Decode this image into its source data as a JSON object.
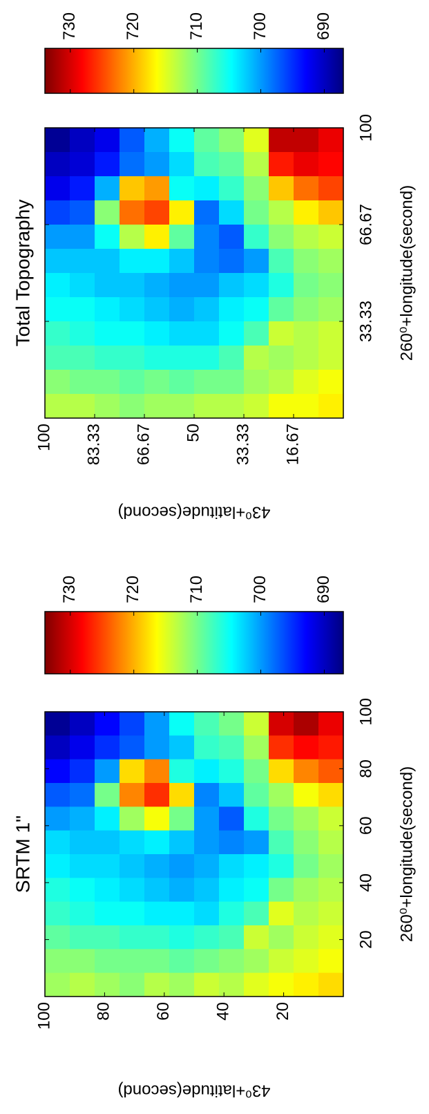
{
  "chart_data": [
    {
      "type": "heatmap",
      "title": "SRTM 1\"",
      "xlabel": "260⁰+longitude(second)",
      "ylabel": "43⁰+latitude(second)",
      "xlim": [
        0,
        100
      ],
      "ylim": [
        0,
        100
      ],
      "xticks": [
        20,
        40,
        60,
        80,
        100
      ],
      "yticks": [
        20,
        40,
        60,
        80,
        100
      ],
      "colormap": "jet",
      "clim": [
        687,
        734
      ],
      "cticks": [
        690,
        700,
        710,
        720,
        730
      ],
      "z": [
        [
          712,
          711,
          709,
          707,
          706,
          704,
          703,
          700,
          697,
          693,
          690,
          688
        ],
        [
          713,
          711,
          708,
          706,
          705,
          703,
          702,
          701,
          698,
          695,
          692,
          690
        ],
        [
          712,
          710,
          708,
          705,
          704,
          703,
          702,
          704,
          710,
          700,
          695,
          693
        ],
        [
          711,
          710,
          707,
          705,
          703,
          702,
          703,
          712,
          722,
          718,
          697,
          696
        ],
        [
          713,
          710,
          707,
          704,
          702,
          701,
          704,
          716,
          726,
          722,
          700,
          700
        ],
        [
          712,
          709,
          706,
          704,
          701,
          700,
          702,
          710,
          718,
          706,
          702,
          705
        ],
        [
          714,
          710,
          707,
          703,
          702,
          701,
          700,
          700,
          699,
          704,
          707,
          708
        ],
        [
          713,
          711,
          708,
          706,
          704,
          703,
          699,
          697,
          702,
          706,
          708,
          710
        ],
        [
          715,
          712,
          714,
          708,
          705,
          704,
          700,
          706,
          709,
          710,
          712,
          714
        ],
        [
          716,
          714,
          712,
          715,
          710,
          706,
          708,
          710,
          712,
          718,
          726,
          730
        ],
        [
          717,
          715,
          714,
          713,
          712,
          710,
          711,
          712,
          716,
          722,
          728,
          732
        ],
        [
          718,
          716,
          715,
          714,
          713,
          712,
          713,
          714,
          718,
          724,
          727,
          729
        ]
      ]
    },
    {
      "type": "heatmap",
      "title": "Total Topography",
      "xlabel": "260⁰+longitude(second)",
      "ylabel": "43⁰+latitude(second)",
      "xlim": [
        0,
        100
      ],
      "ylim": [
        0,
        100
      ],
      "xticks": [
        33.33,
        66.67,
        100
      ],
      "yticks": [
        16.67,
        33.33,
        50,
        66.67,
        83.33,
        100
      ],
      "colormap": "jet",
      "clim": [
        687,
        734
      ],
      "cticks": [
        690,
        700,
        710,
        720,
        730
      ],
      "z": [
        [
          713,
          711,
          708,
          707,
          705,
          704,
          702,
          700,
          696,
          692,
          690,
          688
        ],
        [
          713,
          710,
          708,
          706,
          705,
          703,
          702,
          700,
          697,
          694,
          691,
          690
        ],
        [
          712,
          710,
          707,
          705,
          704,
          702,
          702,
          705,
          711,
          701,
          694,
          692
        ],
        [
          711,
          709,
          707,
          705,
          703,
          702,
          704,
          713,
          723,
          719,
          698,
          697
        ],
        [
          712,
          710,
          706,
          704,
          702,
          701,
          704,
          717,
          725,
          721,
          700,
          701
        ],
        [
          712,
          709,
          706,
          703,
          701,
          700,
          702,
          709,
          717,
          705,
          703,
          705
        ],
        [
          713,
          710,
          706,
          703,
          702,
          700,
          699,
          699,
          698,
          704,
          708,
          709
        ],
        [
          713,
          710,
          708,
          705,
          704,
          702,
          698,
          697,
          703,
          707,
          709,
          711
        ],
        [
          714,
          712,
          713,
          708,
          705,
          703,
          700,
          707,
          710,
          711,
          713,
          715
        ],
        [
          716,
          713,
          712,
          714,
          709,
          706,
          708,
          711,
          713,
          719,
          727,
          731
        ],
        [
          716,
          715,
          713,
          713,
          711,
          710,
          711,
          713,
          717,
          723,
          729,
          731
        ],
        [
          717,
          716,
          714,
          714,
          712,
          711,
          712,
          714,
          719,
          725,
          728,
          729
        ]
      ]
    }
  ]
}
